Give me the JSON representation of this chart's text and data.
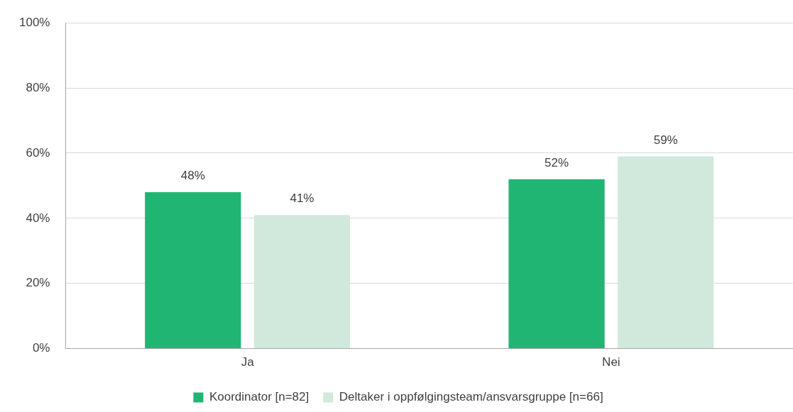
{
  "chart_data": {
    "type": "bar",
    "categories": [
      "Ja",
      "Nei"
    ],
    "series": [
      {
        "name": "Koordinator [n=82]",
        "color": "#21b573",
        "values": [
          48,
          52
        ],
        "value_labels": [
          "48%",
          "52%"
        ]
      },
      {
        "name": "Deltaker i oppfølgingsteam/ansvarsgruppe [n=66]",
        "color": "#d0e9dc",
        "values": [
          41,
          59
        ],
        "value_labels": [
          "41%",
          "59%"
        ]
      }
    ],
    "ylim": [
      0,
      100
    ],
    "yticks": [
      {
        "value": 0,
        "label": "0%"
      },
      {
        "value": 20,
        "label": "20%"
      },
      {
        "value": 40,
        "label": "40%"
      },
      {
        "value": 60,
        "label": "60%"
      },
      {
        "value": 80,
        "label": "80%"
      },
      {
        "value": 100,
        "label": "100%"
      }
    ],
    "grid": "y",
    "legend": "bottom"
  }
}
